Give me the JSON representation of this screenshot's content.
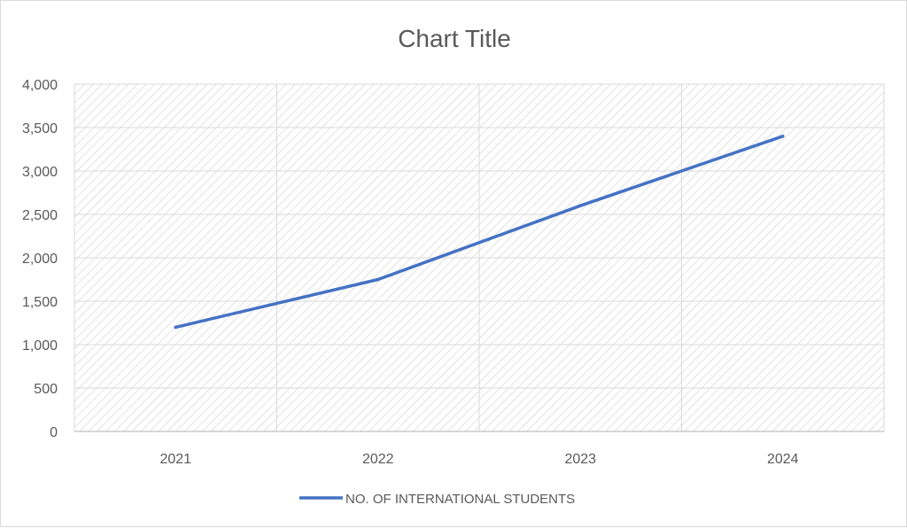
{
  "chart_data": {
    "type": "line",
    "title": "Chart Title",
    "categories": [
      "2021",
      "2022",
      "2023",
      "2024"
    ],
    "series": [
      {
        "name": "NO. OF INTERNATIONAL STUDENTS",
        "values": [
          1200,
          1750,
          2600,
          3400
        ],
        "color": "#4472c4"
      }
    ],
    "yticks": [
      "0",
      "500",
      "1,000",
      "1,500",
      "2,000",
      "2,500",
      "3,000",
      "3,500",
      "4,000"
    ],
    "ylim": [
      0,
      4000
    ],
    "grid": true,
    "legend": "bottom",
    "xlabel": "",
    "ylabel": ""
  }
}
